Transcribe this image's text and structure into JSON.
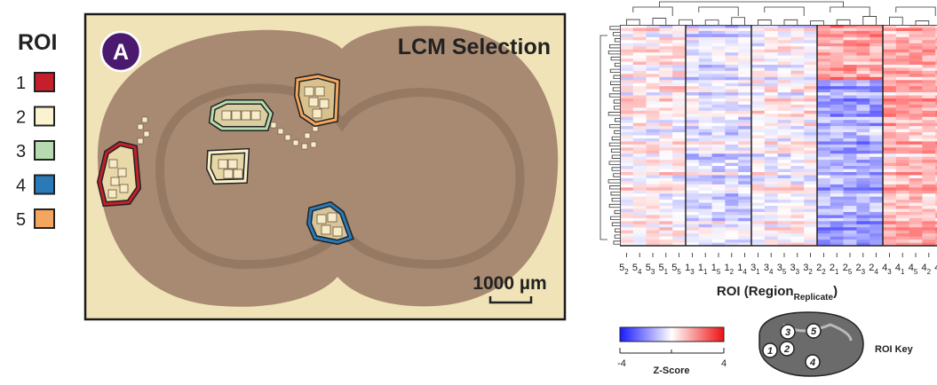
{
  "panel_label": "A",
  "image_title": "LCM Selection",
  "scale_bar": "1000 µm",
  "roi_legend": {
    "title": "ROI",
    "items": [
      {
        "label": "1",
        "color": "#c3202b"
      },
      {
        "label": "2",
        "color": "#fbf3cf"
      },
      {
        "label": "3",
        "color": "#b6dbb0"
      },
      {
        "label": "4",
        "color": "#2a7ab8"
      },
      {
        "label": "5",
        "color": "#f4a65e"
      }
    ]
  },
  "heatmap": {
    "columns": [
      {
        "region": "5",
        "replicate": "2"
      },
      {
        "region": "5",
        "replicate": "4"
      },
      {
        "region": "5",
        "replicate": "3"
      },
      {
        "region": "5",
        "replicate": "1"
      },
      {
        "region": "5",
        "replicate": "5"
      },
      {
        "region": "1",
        "replicate": "3"
      },
      {
        "region": "1",
        "replicate": "1"
      },
      {
        "region": "1",
        "replicate": "5"
      },
      {
        "region": "1",
        "replicate": "2"
      },
      {
        "region": "1",
        "replicate": "4"
      },
      {
        "region": "3",
        "replicate": "1"
      },
      {
        "region": "3",
        "replicate": "4"
      },
      {
        "region": "3",
        "replicate": "5"
      },
      {
        "region": "3",
        "replicate": "3"
      },
      {
        "region": "3",
        "replicate": "2"
      },
      {
        "region": "2",
        "replicate": "2"
      },
      {
        "region": "2",
        "replicate": "1"
      },
      {
        "region": "2",
        "replicate": "5"
      },
      {
        "region": "2",
        "replicate": "3"
      },
      {
        "region": "2",
        "replicate": "4"
      },
      {
        "region": "4",
        "replicate": "3"
      },
      {
        "region": "4",
        "replicate": "1"
      },
      {
        "region": "4",
        "replicate": "5"
      },
      {
        "region": "4",
        "replicate": "2"
      },
      {
        "region": "4",
        "replicate": "4"
      }
    ],
    "xlabel": {
      "main": "ROI (Region",
      "sub": "Replicate",
      "close": ")"
    }
  },
  "colorbar": {
    "title": "Z-Score",
    "min": -4,
    "max": 4
  },
  "roi_key": {
    "title": "ROI Key",
    "labels": [
      "1",
      "3",
      "5",
      "2",
      "4"
    ]
  }
}
